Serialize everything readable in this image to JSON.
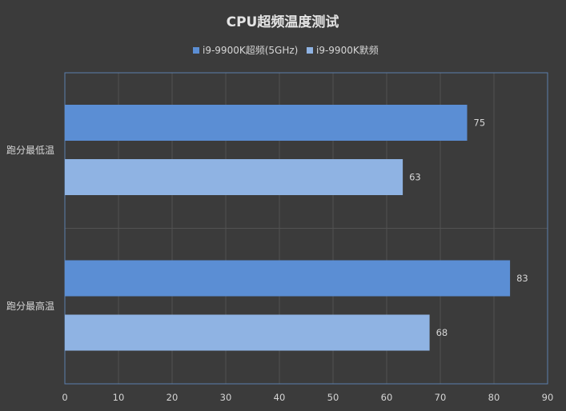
{
  "chart_data": {
    "type": "bar",
    "orientation": "horizontal",
    "title": "CPU超频温度测试",
    "categories": [
      "跑分最低温",
      "跑分最高温"
    ],
    "series": [
      {
        "name": "i9-9900K超频(5GHz)",
        "values": [
          75,
          83
        ],
        "color": "#5b8ed4"
      },
      {
        "name": "i9-9900K默频",
        "values": [
          63,
          68
        ],
        "color": "#8fb3e3"
      }
    ],
    "xlim": [
      0,
      90
    ],
    "xticks": [
      0,
      10,
      20,
      30,
      40,
      50,
      60,
      70,
      80,
      90
    ],
    "grid": true,
    "legend_position": "top",
    "colors": {
      "background": "#3b3b3b",
      "grid": "#525252",
      "axis": "#5b7fae",
      "text": "#d6d6d6",
      "title": "#e4e4e4"
    }
  }
}
